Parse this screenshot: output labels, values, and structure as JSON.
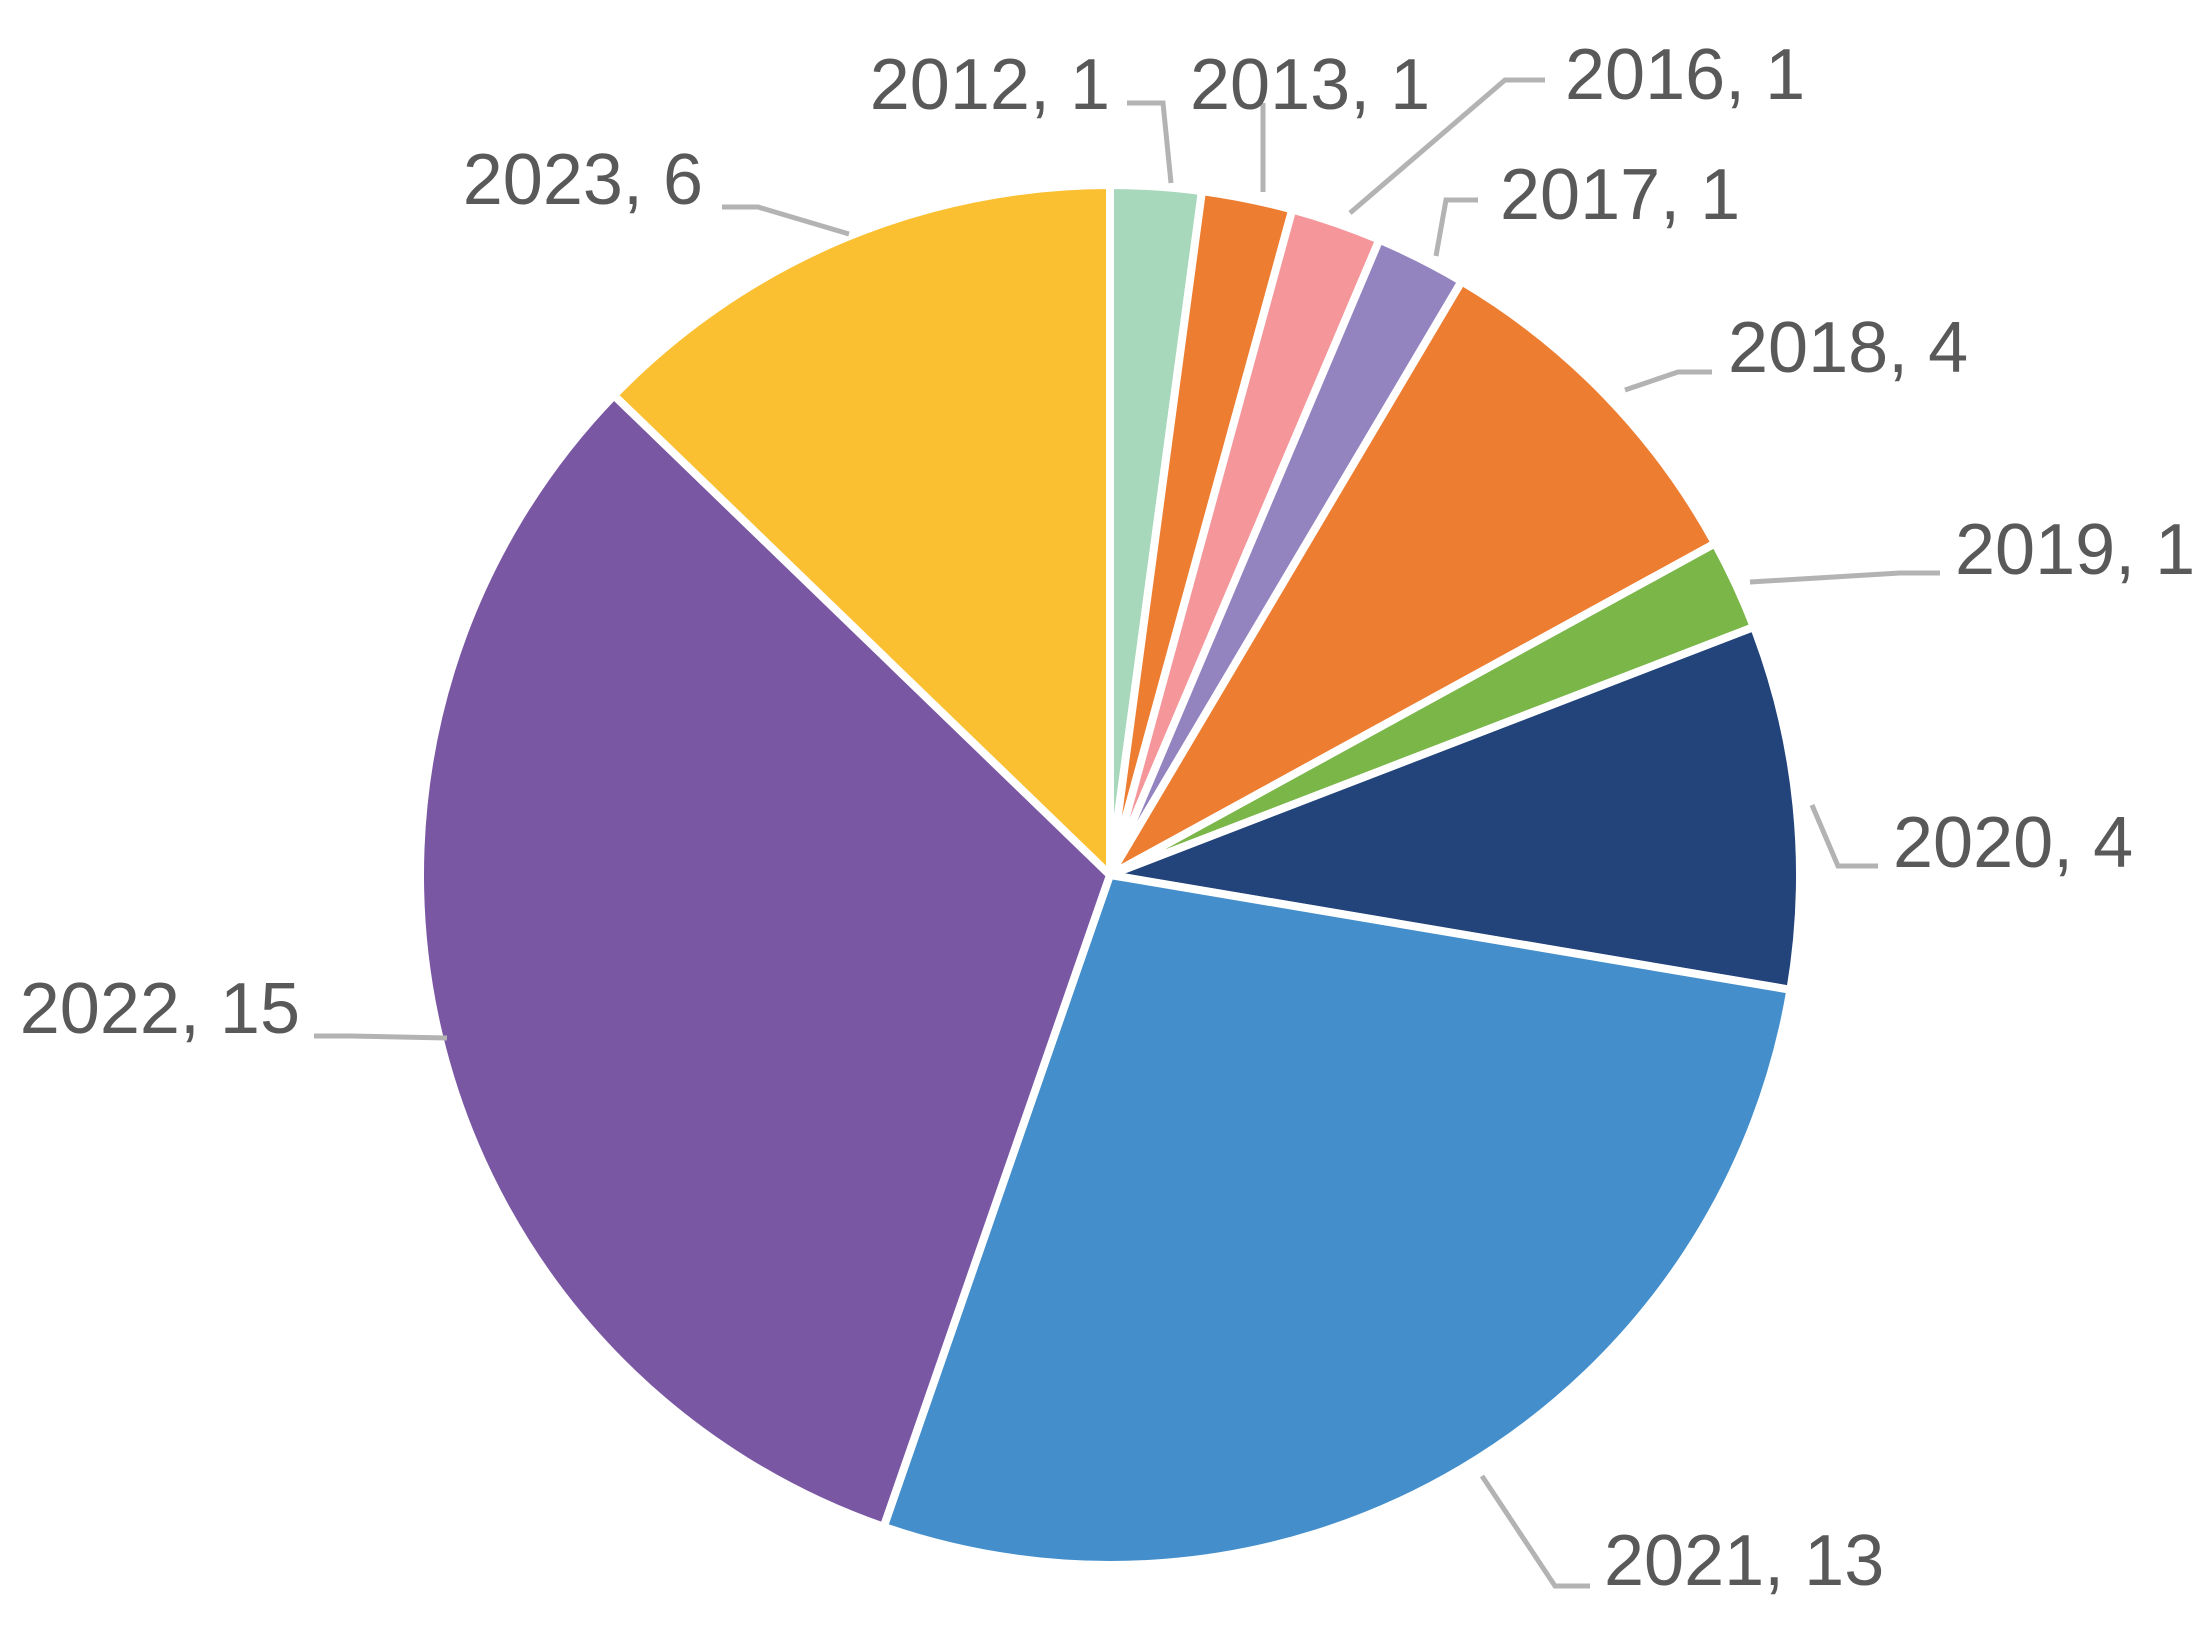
{
  "chart_data": {
    "type": "pie",
    "categories": [
      "2012",
      "2013",
      "2016",
      "2017",
      "2018",
      "2019",
      "2020",
      "2021",
      "2022",
      "2023"
    ],
    "values": [
      1,
      1,
      1,
      1,
      4,
      1,
      4,
      13,
      15,
      6
    ],
    "labels": [
      "2012, 1",
      "2013, 1",
      "2016, 1",
      "2017, 1",
      "2018, 4",
      "2019, 1",
      "2020, 4",
      "2021, 13",
      "2022, 15",
      "2023, 6"
    ],
    "colors": [
      "#a8d8bb",
      "#ed7d31",
      "#f4969a",
      "#9384c0",
      "#ed7d31",
      "#7ab648",
      "#22447a",
      "#448fcb",
      "#7a57a3",
      "#fbc031"
    ],
    "start": "12 o'clock",
    "direction": "clockwise",
    "legend": "none",
    "data_labels": "category, value"
  }
}
